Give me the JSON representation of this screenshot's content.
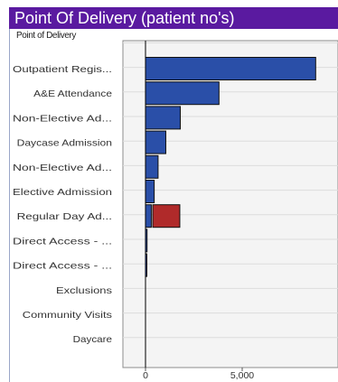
{
  "header": {
    "title": "Point Of Delivery (patient no's)"
  },
  "chart_data": {
    "type": "bar",
    "orientation": "horizontal",
    "subtitle": "Point of Delivery",
    "categories": [
      "Outpatient Regis...",
      "A&E Attendance",
      "Non-Elective Ad...",
      "Daycase Admission",
      "Non-Elective Ad...",
      "Elective Admission",
      "Regular Day Ad...",
      "Direct Access - ...",
      "Direct Access - ...",
      "Exclusions",
      "Community Visits",
      "Daycare"
    ],
    "series": [
      {
        "color": "#2a4fa8",
        "values": [
          8800,
          3800,
          1800,
          1050,
          650,
          450,
          300,
          80,
          20,
          0,
          0,
          0
        ]
      },
      {
        "color": "#b02a2a",
        "values": [
          0,
          0,
          0,
          0,
          0,
          0,
          1400,
          0,
          0,
          0,
          0,
          0
        ]
      }
    ],
    "xlim": [
      0,
      9300
    ],
    "xticks": [
      0,
      5000
    ],
    "xtick_labels": [
      "0",
      "5,000"
    ],
    "grid": true
  }
}
